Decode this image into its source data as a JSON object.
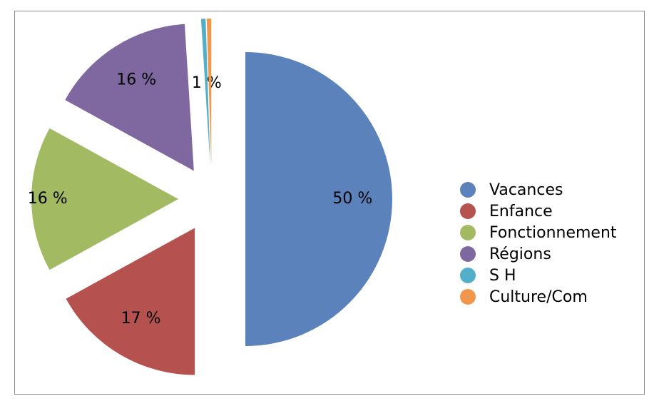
{
  "chart_data": {
    "type": "pie",
    "exploded": true,
    "start_angle_deg": 0,
    "direction": "clockwise",
    "legend_position": "right",
    "slices": [
      {
        "name": "Vacances",
        "value": 50,
        "label": "50 %",
        "color": "#5B82BA"
      },
      {
        "name": "Enfance",
        "value": 17,
        "label": "17 %",
        "color": "#B5524F"
      },
      {
        "name": "Fonctionnement",
        "value": 16,
        "label": "16 %",
        "color": "#A2BB62"
      },
      {
        "name": "Régions",
        "value": 16,
        "label": "16 %",
        "color": "#7F679F"
      },
      {
        "name": "S H",
        "value": 0.5,
        "label": "1 %",
        "color": "#52AEC9"
      },
      {
        "name": "Culture/Com",
        "value": 0.5,
        "label": "",
        "color": "#F0974B"
      }
    ]
  }
}
